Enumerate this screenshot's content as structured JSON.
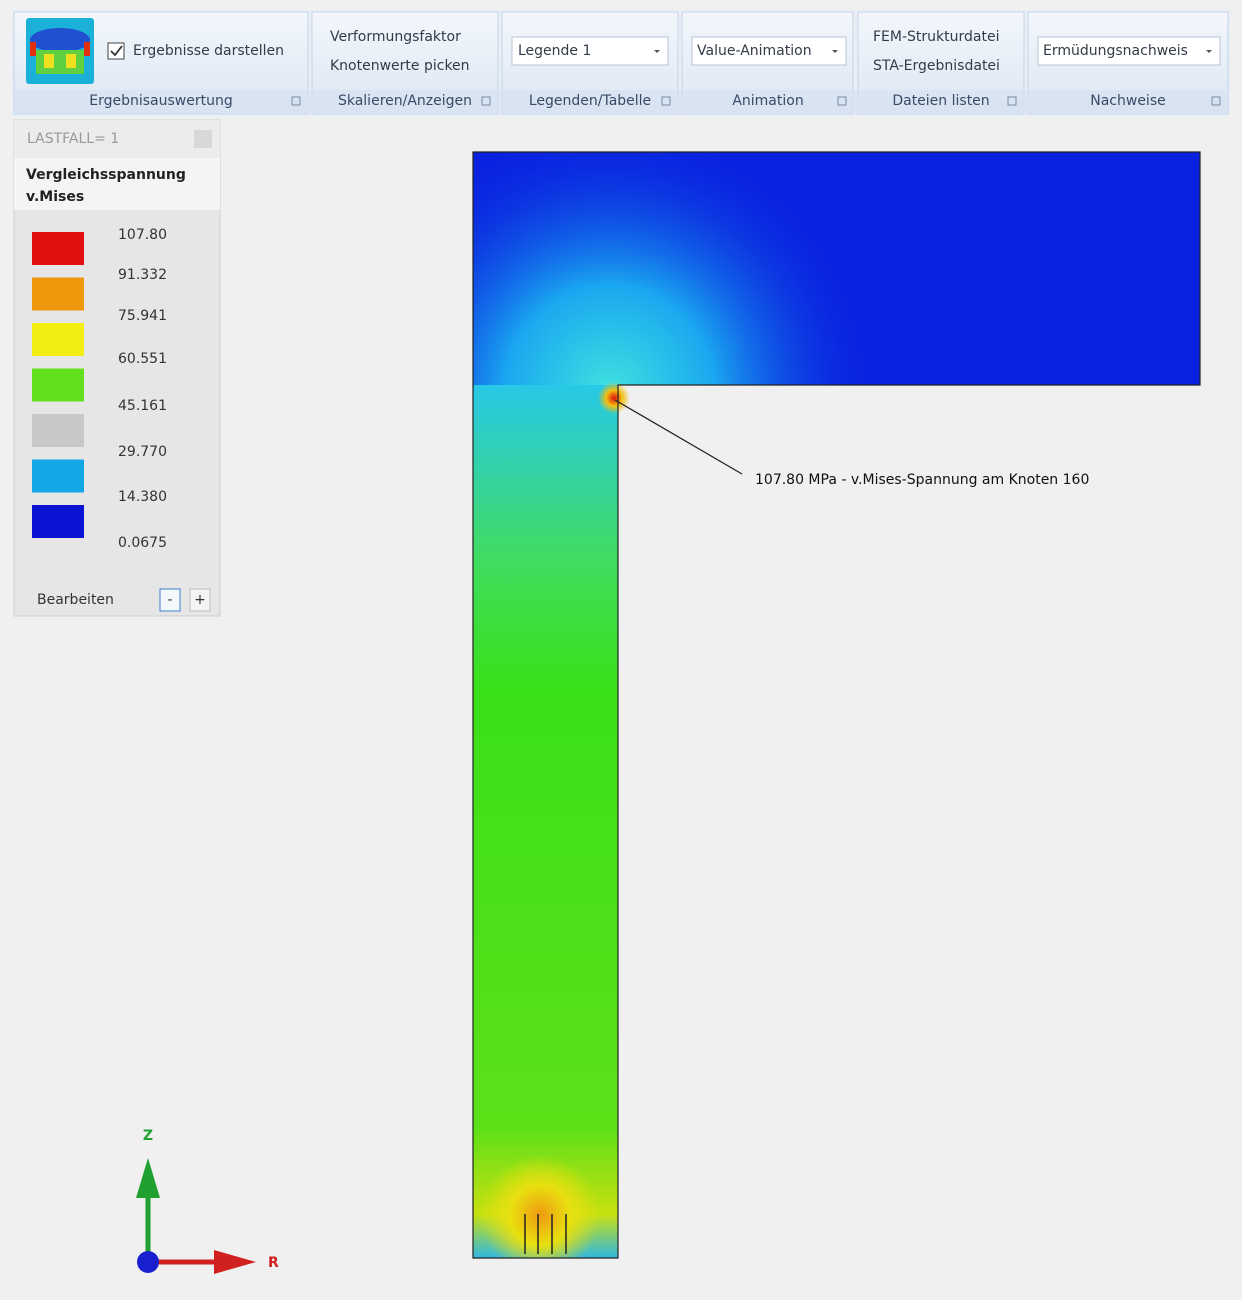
{
  "ribbon": {
    "groups": [
      {
        "items": [
          "Ergebnisse darstellen"
        ],
        "label": "Ergebnisauswertung"
      },
      {
        "items": [
          "Verformungsfaktor",
          "Knotenwerte picken"
        ],
        "label": "Skalieren/Anzeigen"
      },
      {
        "items": [
          "Legende 1"
        ],
        "label": "Legenden/Tabelle"
      },
      {
        "items": [
          "Value-Animation"
        ],
        "label": "Animation"
      },
      {
        "items": [
          "FEM-Strukturdatei",
          "STA-Ergebnisdatei"
        ],
        "label": "Dateien listen"
      },
      {
        "items": [
          "Ermüdungsnachweis"
        ],
        "label": "Nachweise"
      }
    ]
  },
  "legend": {
    "load_case": "LASTFALL= 1",
    "title": [
      "Vergleichsspannung",
      "v.Mises"
    ],
    "values": [
      "107.80",
      "91.332",
      "75.941",
      "60.551",
      "45.161",
      "29.770",
      "14.380",
      "0.0675"
    ],
    "colors": [
      "#e31010",
      "#f0980c",
      "#f2ee12",
      "#62e01e",
      "#c8c8c8",
      "#12a6e6",
      "#0a14d2"
    ],
    "footer": "Bearbeiten",
    "buttons": [
      "-",
      "+"
    ]
  },
  "viewport": {
    "annotation": "107.80 MPa -  v.Mises-Spannung am Knoten 160",
    "axes": [
      "Z",
      "R"
    ]
  }
}
